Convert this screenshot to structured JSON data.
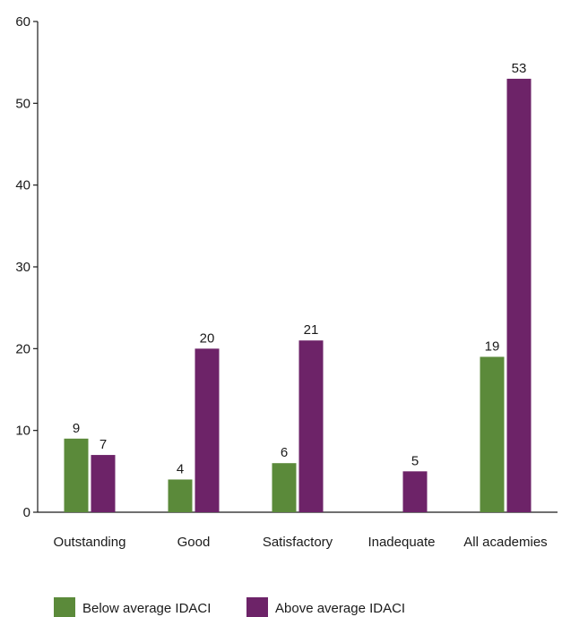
{
  "chart_data": {
    "type": "bar",
    "categories": [
      "Outstanding",
      "Good",
      "Satisfactory",
      "Inadequate",
      "All academies"
    ],
    "series": [
      {
        "name": "Below average IDACI",
        "color": "#5b8a3a",
        "values": [
          9,
          4,
          6,
          null,
          19
        ]
      },
      {
        "name": "Above average IDACI",
        "color": "#6d2368",
        "values": [
          7,
          20,
          21,
          5,
          53
        ]
      }
    ],
    "ylim": [
      0,
      60
    ],
    "yticks": [
      0,
      10,
      20,
      30,
      40,
      50,
      60
    ],
    "grid": false,
    "legend_position": "bottom-left"
  }
}
